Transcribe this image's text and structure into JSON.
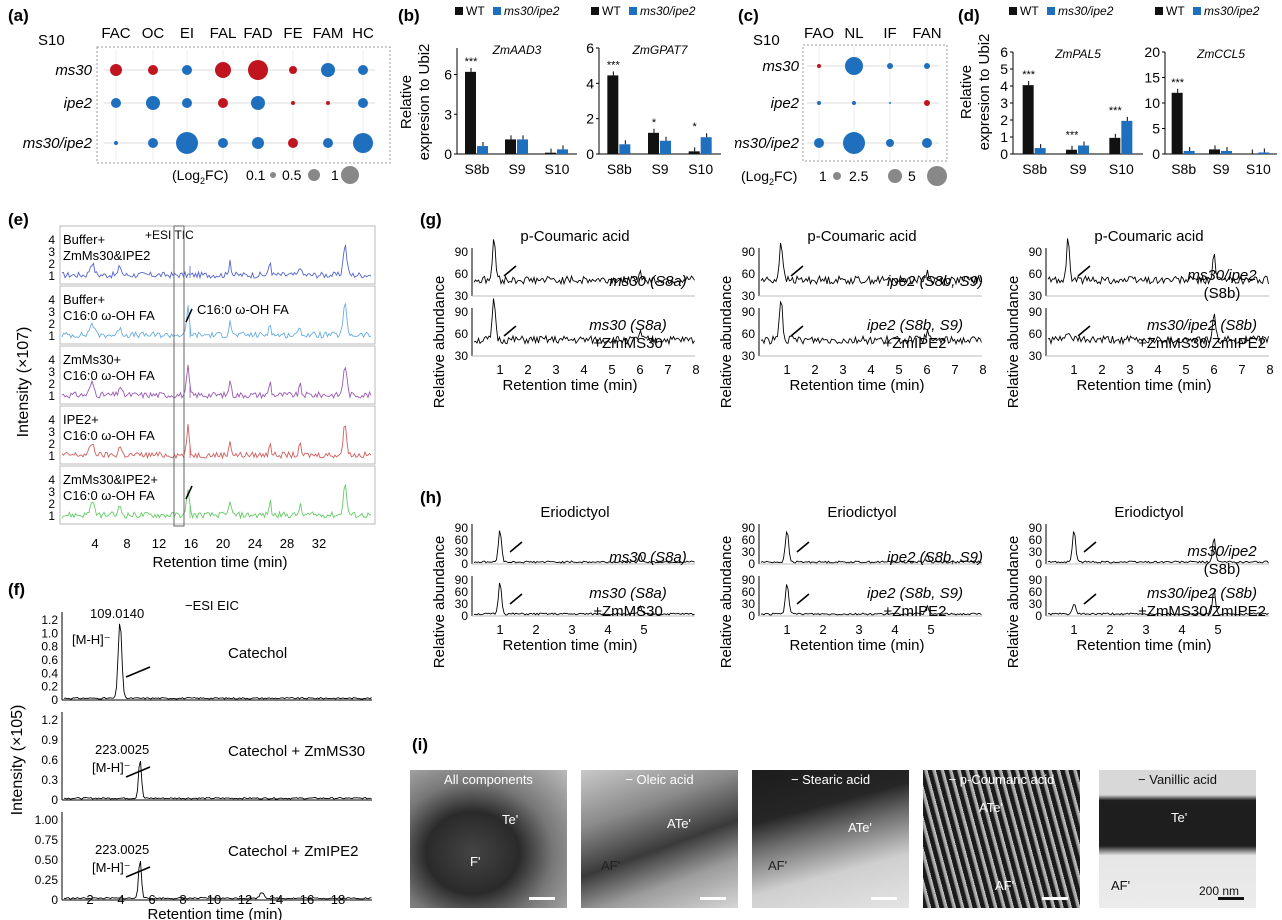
{
  "figure": {
    "panels": {
      "a": "(a)",
      "b": "(b)",
      "c": "(c)",
      "d": "(d)",
      "e": "(e)",
      "f": "(f)",
      "g": "(g)",
      "h": "(h)",
      "i": "(i)"
    },
    "colors": {
      "wt": "#111111",
      "mut": "#1f6fbf",
      "red": "#c0141e",
      "blue": "#1f6fbf"
    }
  },
  "panel_a": {
    "stage": "S10",
    "columns": [
      "FAC",
      "OC",
      "EI",
      "FAL",
      "FAD",
      "FE",
      "FAM",
      "HC"
    ],
    "rows": [
      "ms30",
      "ipe2",
      "ms30/ipe2"
    ],
    "legend_prefix": "(Log",
    "legend_sub": "2",
    "legend_suffix": "FC)",
    "legend_values": [
      "0.1",
      "0.5",
      "1"
    ]
  },
  "panel_c": {
    "stage": "S10",
    "columns": [
      "FAO",
      "NL",
      "IF",
      "FAN"
    ],
    "rows": [
      "ms30",
      "ipe2",
      "ms30/ipe2"
    ],
    "legend_prefix": "(Log",
    "legend_sub": "2",
    "legend_suffix": "FC)",
    "legend_values": [
      "1",
      "2.5",
      "5"
    ]
  },
  "panel_b": {
    "ylabel_line1": "Relative",
    "ylabel_line2": "expresion to Ubi2",
    "legend": [
      "WT",
      "ms30/ipe2"
    ],
    "charts": [
      {
        "gene": "ZmAAD3",
        "yticks": [
          "0",
          "3",
          "6"
        ]
      },
      {
        "gene": "ZmGPAT7",
        "yticks": [
          "0",
          "2",
          "4",
          "6"
        ]
      }
    ],
    "categories": [
      "S8b",
      "S9",
      "S10"
    ]
  },
  "panel_d": {
    "ylabel_line1": "Relative",
    "ylabel_line2": "expresion to Ubi2",
    "legend": [
      "WT",
      "ms30/ipe2"
    ],
    "charts": [
      {
        "gene": "ZmPAL5",
        "yticks": [
          "0",
          "1",
          "2",
          "3",
          "4",
          "5",
          "6"
        ]
      },
      {
        "gene": "ZmCCL5",
        "yticks": [
          "0",
          "5",
          "10",
          "15",
          "20"
        ]
      }
    ],
    "categories": [
      "S8b",
      "S9",
      "S10"
    ]
  },
  "chart_data": [
    {
      "type": "bar",
      "title": "ZmAAD3",
      "categories": [
        "S8b",
        "S9",
        "S10"
      ],
      "ylim": [
        0,
        8
      ],
      "series": [
        {
          "name": "WT",
          "values": [
            6.2,
            1.1,
            0.1
          ]
        },
        {
          "name": "ms30/ipe2",
          "values": [
            0.6,
            1.1,
            0.35
          ]
        }
      ],
      "annotations": [
        "***",
        "",
        ""
      ]
    },
    {
      "type": "bar",
      "title": "ZmGPAT7",
      "categories": [
        "S8b",
        "S9",
        "S10"
      ],
      "ylim": [
        0,
        6
      ],
      "series": [
        {
          "name": "WT",
          "values": [
            4.45,
            1.2,
            0.15
          ]
        },
        {
          "name": "ms30/ipe2",
          "values": [
            0.55,
            0.75,
            0.95
          ]
        }
      ],
      "annotations": [
        "***",
        "*",
        "*"
      ]
    },
    {
      "type": "bar",
      "title": "ZmPAL5",
      "categories": [
        "S8b",
        "S9",
        "S10"
      ],
      "ylim": [
        0,
        6
      ],
      "series": [
        {
          "name": "WT",
          "values": [
            4.05,
            0.25,
            0.95
          ]
        },
        {
          "name": "ms30/ipe2",
          "values": [
            0.35,
            0.5,
            1.95
          ]
        }
      ],
      "annotations": [
        "***",
        "***",
        "***"
      ]
    },
    {
      "type": "bar",
      "title": "ZmCCL5",
      "categories": [
        "S8b",
        "S9",
        "S10"
      ],
      "ylim": [
        0,
        20
      ],
      "series": [
        {
          "name": "WT",
          "values": [
            12,
            0.9,
            0.1
          ]
        },
        {
          "name": "ms30/ipe2",
          "values": [
            0.6,
            0.6,
            0.3
          ]
        }
      ],
      "annotations": [
        "***",
        "",
        ""
      ]
    }
  ],
  "panel_e": {
    "ylabel": "Intensity (×10",
    "ylabel_sup": "7",
    "ylabel_end": ")",
    "xlabel": "Retention time (min)",
    "xticks": [
      "4",
      "8",
      "12",
      "16",
      "20",
      "24",
      "28",
      "32"
    ],
    "yticks": [
      "1",
      "2",
      "3",
      "4"
    ],
    "mode": "+ESI TIC",
    "annotation": "C16:0 ω-OH FA",
    "traces": [
      {
        "l1": "Buffer+",
        "l2": "ZmMs30&IPE2",
        "color": "#5566cc"
      },
      {
        "l1": "Buffer+",
        "l2": "C16:0 ω-OH FA",
        "color": "#6aaee0"
      },
      {
        "l1": "ZmMs30+",
        "l2": "C16:0 ω-OH FA",
        "color": "#9a5ab5"
      },
      {
        "l1": "IPE2+",
        "l2": "C16:0 ω-OH FA",
        "color": "#d06060"
      },
      {
        "l1": "ZmMs30&IPE2+",
        "l2": "C16:0 ω-OH FA",
        "color": "#66cc66"
      }
    ]
  },
  "panel_f": {
    "mode": "−ESI EIC",
    "ylabel": "Intensity (×10",
    "ylabel_sup": "5",
    "ylabel_end": ")",
    "xlabel": "Retention time (min)",
    "xticks": [
      "2",
      "4",
      "6",
      "8",
      "10",
      "12",
      "14",
      "16",
      "18"
    ],
    "traces": [
      {
        "label": "Catechol",
        "mz": "109.0140",
        "ion": "[M-H]⁻",
        "yticks": [
          "0",
          "0.2",
          "0.4",
          "0.6",
          "0.8",
          "1.0",
          "1.2"
        ]
      },
      {
        "label": "Catechol + ZmMS30",
        "mz": "223.0025",
        "ion": "[M-H]⁻",
        "yticks": [
          "0",
          "0.3",
          "0.6",
          "0.9",
          "1.2"
        ]
      },
      {
        "label": "Catechol + ZmIPE2",
        "mz": "223.0025",
        "ion": "[M-H]⁻",
        "yticks": [
          "0",
          "0.25",
          "0.50",
          "0.75",
          "1.00"
        ]
      }
    ]
  },
  "panel_g": {
    "ylabel": "Relative abundance",
    "xlabel": "Retention time (min)",
    "yticks": [
      "30",
      "60",
      "90"
    ],
    "xticks": [
      "1",
      "2",
      "3",
      "4",
      "5",
      "6",
      "7",
      "8"
    ],
    "cols": [
      {
        "title": "p-Coumaric acid",
        "top": "ms30 (S8a)",
        "bot1": "ms30 (S8a)",
        "bot2": "+ZmMS30"
      },
      {
        "title": "p-Coumaric acid",
        "top": "ipe2 (S8b, S9)",
        "bot1": "ipe2 (S8b, S9)",
        "bot2": "+ZmIPE2"
      },
      {
        "title": "p-Coumaric acid",
        "top": "ms30/ipe2",
        "top2": "(S8b)",
        "bot1": "ms30/ipe2 (S8b)",
        "bot2": "+ZmMS30/ZmIPE2"
      }
    ]
  },
  "panel_h": {
    "ylabel": "Relative abundance",
    "xlabel": "Retention time (min)",
    "yticks": [
      "0",
      "30",
      "60",
      "90"
    ],
    "xticks": [
      "1",
      "2",
      "3",
      "4",
      "5"
    ],
    "cols": [
      {
        "title": "Eriodictyol",
        "top": "ms30 (S8a)",
        "bot1": "ms30 (S8a)",
        "bot2": "+ZmMS30"
      },
      {
        "title": "Eriodictyol",
        "top": "ipe2 (S8b, S9)",
        "bot1": "ipe2 (S8b, S9)",
        "bot2": "+ZmIPE2"
      },
      {
        "title": "Eriodictyol",
        "top": "ms30/ipe2",
        "top2": "(S8b)",
        "bot1": "ms30/ipe2 (S8b)",
        "bot2": "+ZmMS30/ZmIPE2"
      }
    ]
  },
  "panel_i": {
    "images": [
      {
        "title": "All components",
        "labels": [
          "Te'",
          "F'"
        ]
      },
      {
        "title": "− Oleic acid",
        "labels": [
          "ATe'",
          "AF'"
        ]
      },
      {
        "title": "− Stearic acid",
        "labels": [
          "ATe'",
          "AF'"
        ]
      },
      {
        "title": "− p-Coumaric acid",
        "labels": [
          "ATe'",
          "AF'"
        ]
      },
      {
        "title": "− Vanillic acid",
        "labels": [
          "Te'",
          "AF'"
        ]
      }
    ],
    "scalebar": "200 nm"
  }
}
